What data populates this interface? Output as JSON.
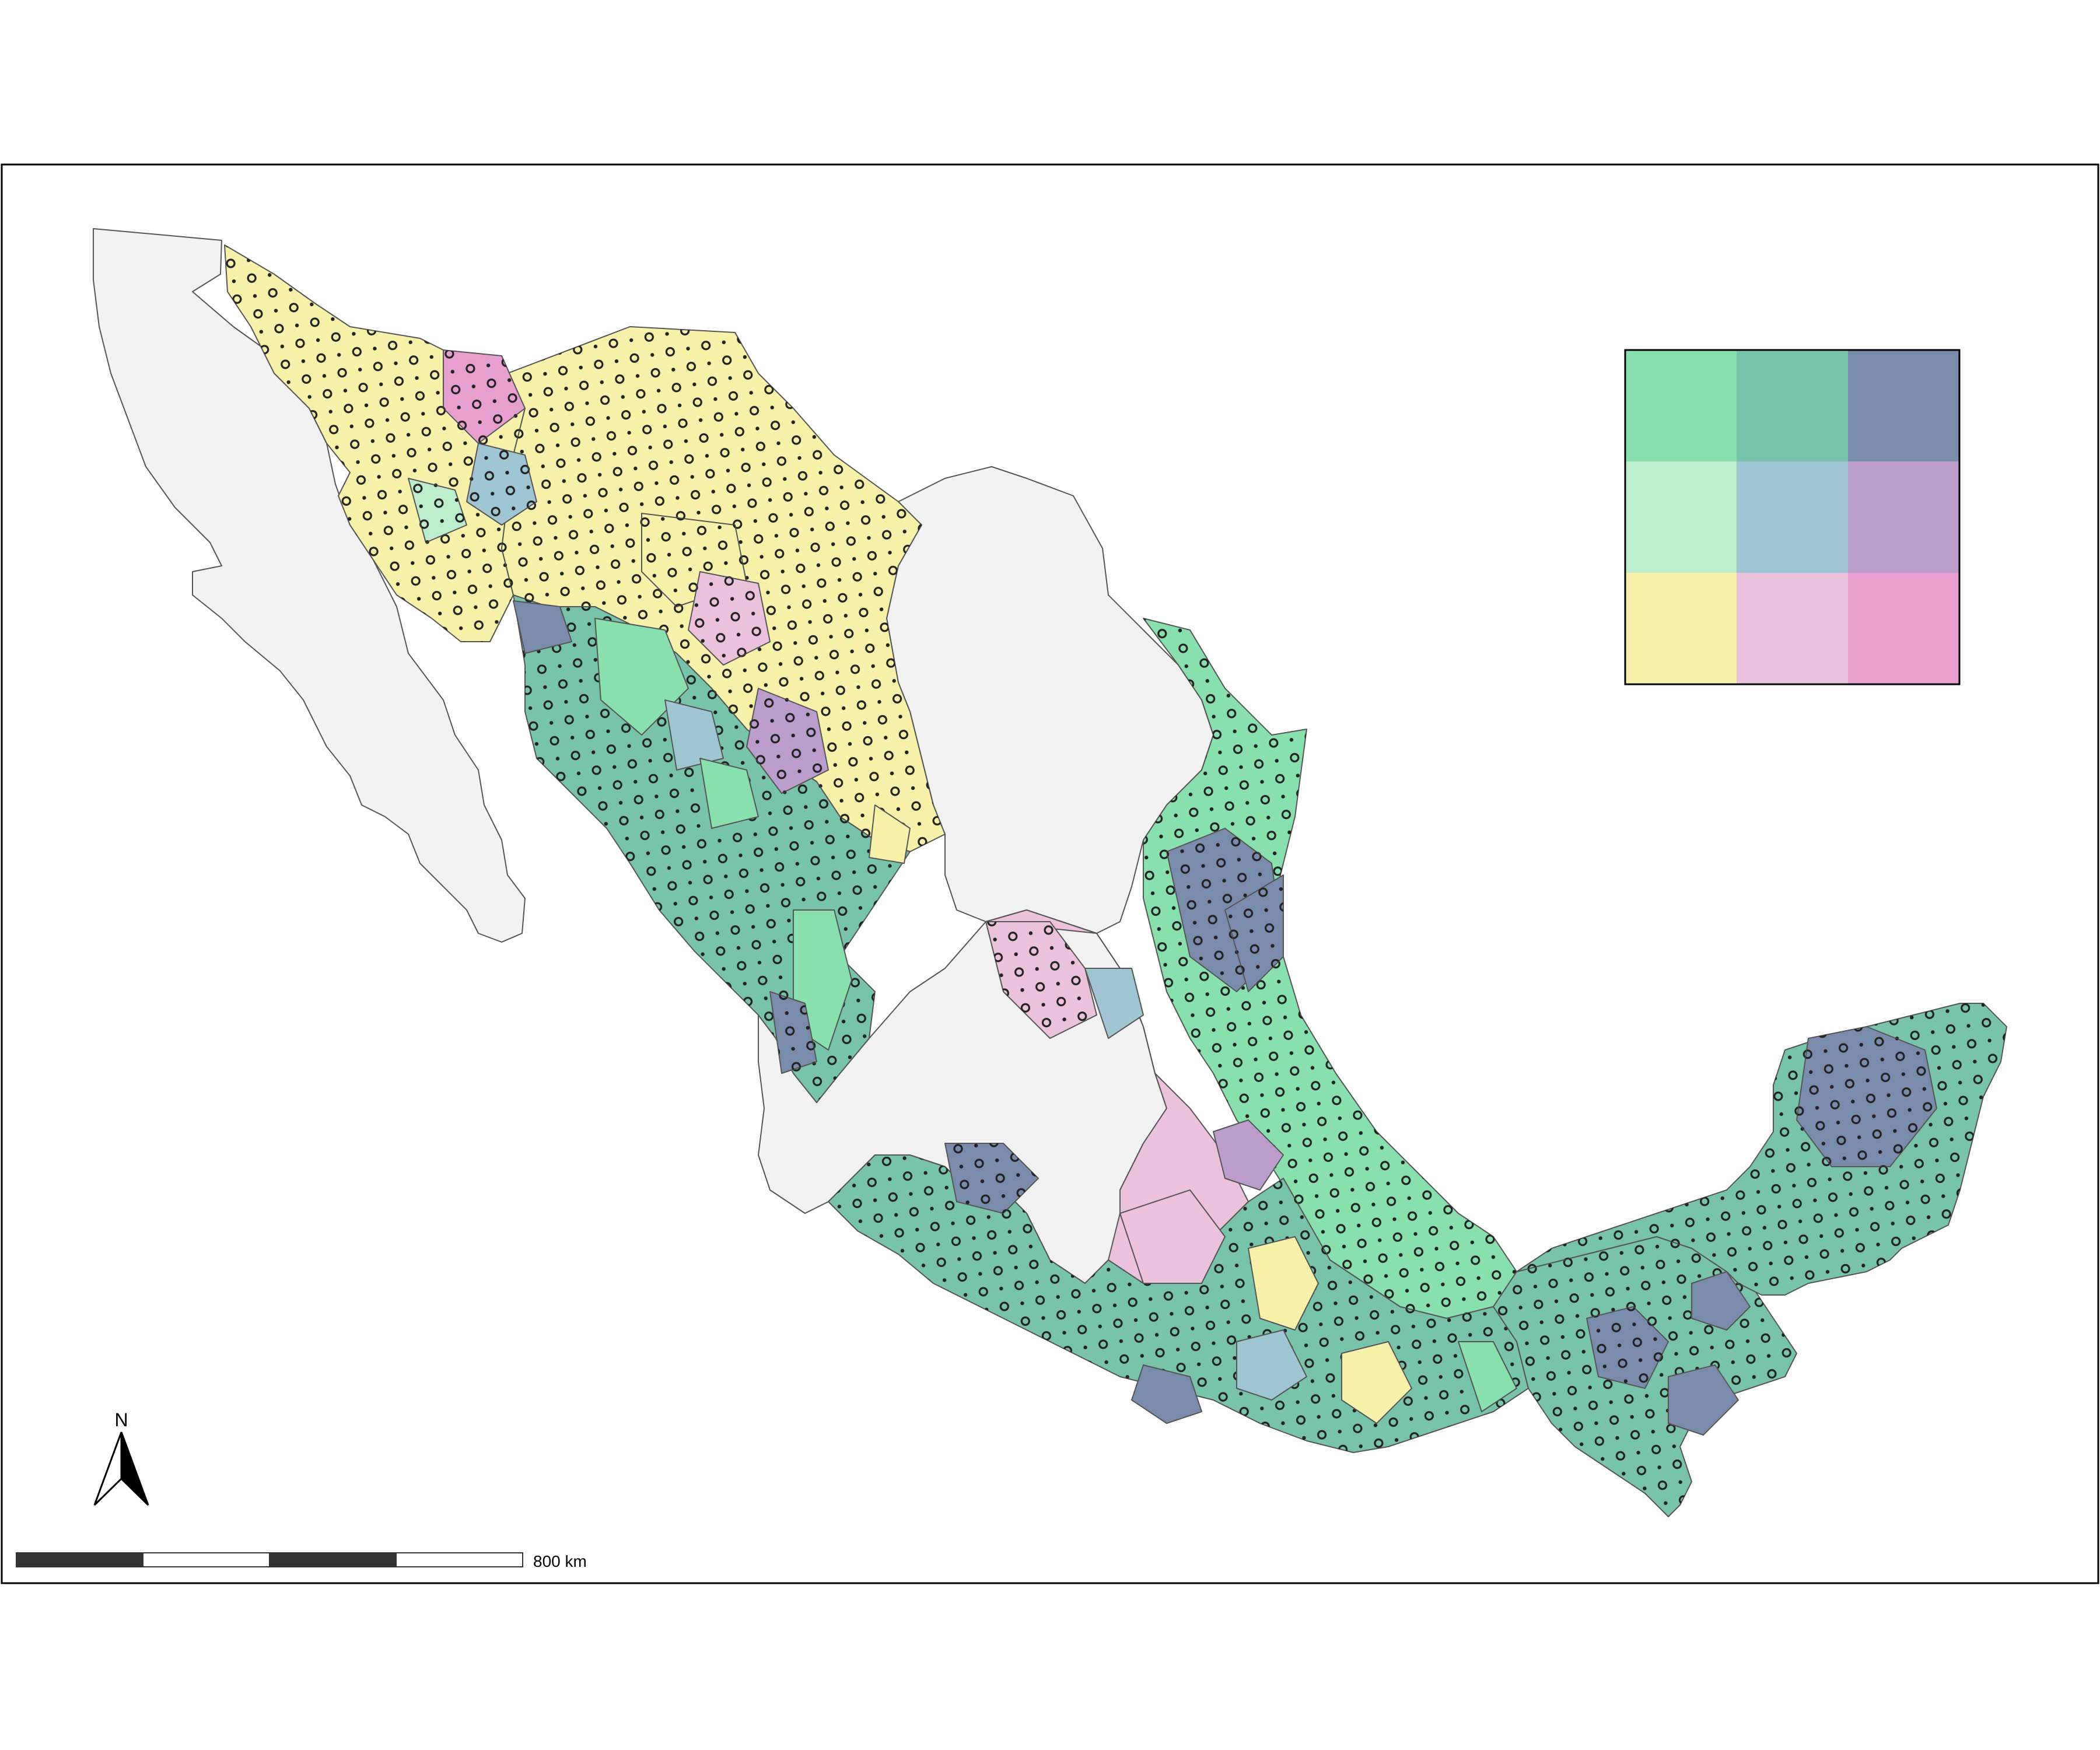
{
  "map": {
    "frame_color": "#000000",
    "background": "#ffffff",
    "no_data_color": "#f2f2f2",
    "border_color": "#555555",
    "hatch": {
      "pattern": "dots-and-rings",
      "color": "#222222"
    }
  },
  "legend": {
    "type": "bivariate-3x3",
    "cells": [
      [
        "#88e0ac",
        "#78c4ab",
        "#7a8cab"
      ],
      [
        "#bdeecc",
        "#9ec5d1",
        "#bb9dcc"
      ],
      [
        "#f7f1a9",
        "#eac2dc",
        "#e79fcf"
      ]
    ]
  },
  "north_arrow": {
    "label": "N",
    "icon": "north-arrow-icon"
  },
  "scale_bar": {
    "label": "800 km",
    "segments": 4
  },
  "regions": [
    {
      "name": "baja-california-no-data",
      "color": "#f2f2f2",
      "hatched": false
    },
    {
      "name": "coahuila-nuevo-leon-no-data",
      "color": "#f2f2f2",
      "hatched": false
    },
    {
      "name": "jalisco-bajio-no-data",
      "color": "#f2f2f2",
      "hatched": false
    },
    {
      "name": "sonora",
      "color": "#f7f1a9",
      "hatched": true
    },
    {
      "name": "chihuahua",
      "color": "#f7f1a9",
      "hatched": true
    },
    {
      "name": "sinaloa-durango",
      "color": "#78c4ab",
      "hatched": true
    },
    {
      "name": "tamaulipas-veracruz",
      "color": "#88e0ac",
      "hatched": true
    },
    {
      "name": "central-highlands",
      "color": "#eac2dc",
      "hatched": false
    },
    {
      "name": "guerrero-oaxaca",
      "color": "#78c4ab",
      "hatched": true
    },
    {
      "name": "chiapas-tabasco",
      "color": "#78c4ab",
      "hatched": true
    },
    {
      "name": "yucatan-peninsula",
      "color": "#78c4ab",
      "hatched": true
    }
  ]
}
